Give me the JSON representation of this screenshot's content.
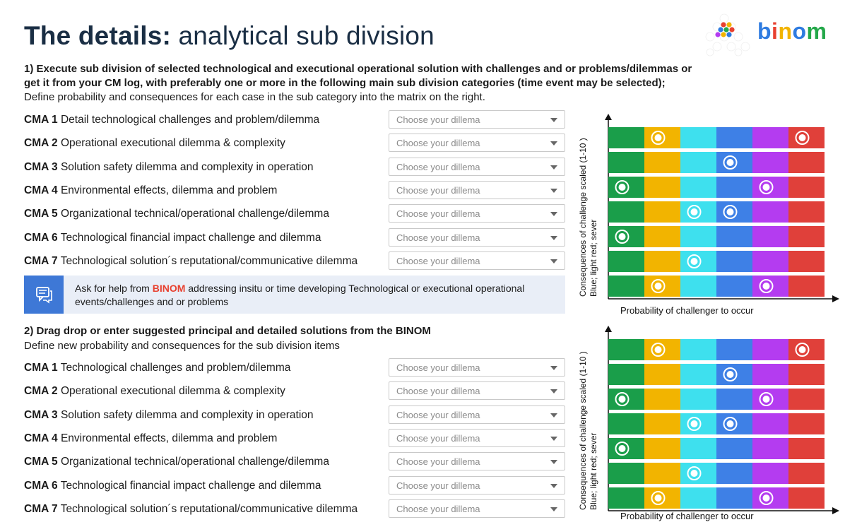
{
  "header": {
    "title_bold": "The details:",
    "title_light": "analytical sub division",
    "logo_text": "binom",
    "logo_letter_colors": [
      "#2e7be0",
      "#e8402f",
      "#f2b400",
      "#2e7be0",
      "#24a84a"
    ]
  },
  "section1": {
    "line1": "1) Execute sub division of selected technological and executional operational solution with challenges and or problems/dilemmas or",
    "line2": "get it from your CM log,  with preferably one or more in the following main sub division categories (time event may be selected);",
    "line3": "Define probability and consequences  for each case in the sub category into the matrix on the right.",
    "rows": [
      {
        "code": "CMA 1",
        "text": "Detail technological challenges and problem/dilemma",
        "placeholder": "Choose your dillema"
      },
      {
        "code": "CMA 2",
        "text": "Operational executional dilemma & complexity",
        "placeholder": "Choose your dillema"
      },
      {
        "code": "CMA 3",
        "text": "Solution safety dilemma and complexity in operation",
        "placeholder": "Choose your dillema"
      },
      {
        "code": "CMA 4",
        "text": "Environmental effects, dilemma and problem",
        "placeholder": "Choose your dillema"
      },
      {
        "code": "CMA 5",
        "text": "Organizational technical/operational challenge/dilemma",
        "placeholder": "Choose your dillema"
      },
      {
        "code": "CMA 6",
        "text": "Technological financial  impact challenge and dilemma",
        "placeholder": "Choose your dillema"
      },
      {
        "code": "CMA 7",
        "text": "Technological solution´s reputational/communicative dilemma",
        "placeholder": "Choose your dillema"
      }
    ]
  },
  "help": {
    "prefix": "Ask for help from ",
    "brand": "BINOM",
    "suffix": " addressing insitu or time developing Technological or executional operational events/challenges and or problems",
    "icon": "chat-icon"
  },
  "section2": {
    "line1": "2) Drag drop or enter suggested principal and detailed solutions from the BINOM",
    "line2": "Define new probability and consequences for the sub division items",
    "rows": [
      {
        "code": "CMA 1",
        "text": "Technological challenges and problem/dilemma",
        "placeholder": "Choose your dillema"
      },
      {
        "code": "CMA 2",
        "text": "Operational executional dilemma & complexity",
        "placeholder": "Choose your dillema"
      },
      {
        "code": "CMA 3",
        "text": "Solution safety dilemma and complexity in operation",
        "placeholder": "Choose your dillema"
      },
      {
        "code": "CMA 4",
        "text": "Environmental effects, dilemma and problem",
        "placeholder": "Choose your dillema"
      },
      {
        "code": "CMA 5",
        "text": "Organizational technical/operational challenge/dilemma",
        "placeholder": "Choose your dillema"
      },
      {
        "code": "CMA 6",
        "text": "Technological financial impact challenge and dilemma",
        "placeholder": "Choose your dillema"
      },
      {
        "code": "CMA 7",
        "text": "Technological solution´s reputational/communicative dilemma",
        "placeholder": "Choose your dillema"
      }
    ]
  },
  "matrix_colors": [
    "#1a9e4a",
    "#f2b400",
    "#3ee0ee",
    "#3e80e6",
    "#b43cf0",
    "#e0403a"
  ],
  "chart_data": [
    {
      "type": "scatter",
      "ylabel_line1": "Consequences  of challenge scaled (1-10 )",
      "ylabel_line2": "Blue; light red; sever",
      "xlabel": "Probability of challenger to occur",
      "color_bands": 6,
      "rows": 7,
      "points": [
        {
          "row": 1,
          "band": 2
        },
        {
          "row": 1,
          "band": 6
        },
        {
          "row": 2,
          "band": 4
        },
        {
          "row": 3,
          "band": 1
        },
        {
          "row": 3,
          "band": 5
        },
        {
          "row": 4,
          "band": 3
        },
        {
          "row": 4,
          "band": 4
        },
        {
          "row": 5,
          "band": 1
        },
        {
          "row": 6,
          "band": 3
        },
        {
          "row": 7,
          "band": 2
        },
        {
          "row": 7,
          "band": 5
        }
      ]
    },
    {
      "type": "scatter",
      "ylabel_line1": "Consequences  of challenge scaled (1-10 )",
      "ylabel_line2": "Blue; light red; sever",
      "xlabel": "Probability of challenger to occur",
      "color_bands": 6,
      "rows": 7,
      "points": [
        {
          "row": 1,
          "band": 2
        },
        {
          "row": 1,
          "band": 6
        },
        {
          "row": 2,
          "band": 4
        },
        {
          "row": 3,
          "band": 1
        },
        {
          "row": 3,
          "band": 5
        },
        {
          "row": 4,
          "band": 3
        },
        {
          "row": 4,
          "band": 4
        },
        {
          "row": 5,
          "band": 1
        },
        {
          "row": 6,
          "band": 3
        },
        {
          "row": 7,
          "band": 2
        },
        {
          "row": 7,
          "band": 5
        }
      ]
    }
  ]
}
